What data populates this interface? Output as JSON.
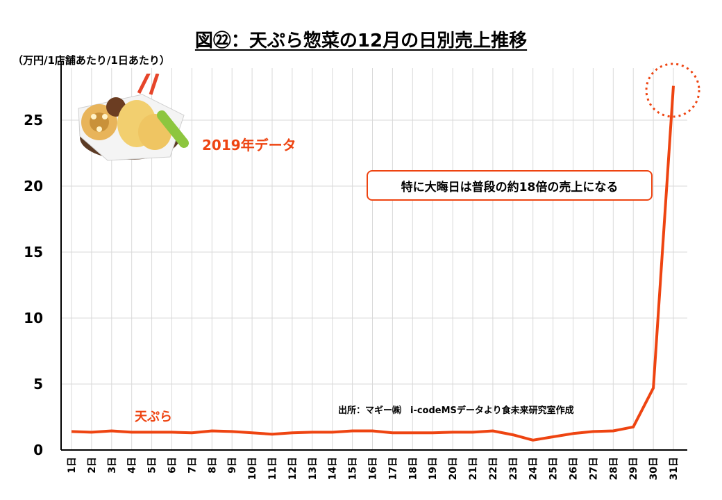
{
  "header": {
    "title": "図㉒：天ぷら惣菜の12月の日別売上推移",
    "unit": "（万円/1店舗あたり/1日あたり）"
  },
  "annotations": {
    "year": "2019年データ",
    "callout": "特に大晦日は普段の約18倍の売上になる",
    "source": "出所：マギー㈱　i-codeMSデータより食未来研究室作成"
  },
  "colors": {
    "line": "#ee4411",
    "grid": "#d9d9d9",
    "axis": "#000000"
  },
  "illustration": {
    "icon": "tempura-plate-icon"
  },
  "chart_data": {
    "type": "line",
    "title": "図㉒：天ぷら惣菜の12月の日別売上推移",
    "ylabel": "（万円/1店舗あたり/1日あたり）",
    "xlabel": "",
    "ylim": [
      0,
      28
    ],
    "yticks": [
      0,
      5,
      10,
      15,
      20,
      25
    ],
    "grid": true,
    "categories": [
      "1日",
      "2日",
      "3日",
      "4日",
      "5日",
      "6日",
      "7日",
      "8日",
      "9日",
      "10日",
      "11日",
      "12日",
      "13日",
      "14日",
      "15日",
      "16日",
      "17日",
      "18日",
      "19日",
      "20日",
      "21日",
      "22日",
      "23日",
      "24日",
      "25日",
      "26日",
      "27日",
      "28日",
      "29日",
      "30日",
      "31日"
    ],
    "series": [
      {
        "name": "天ぷら",
        "values": [
          1.4,
          1.35,
          1.45,
          1.35,
          1.35,
          1.35,
          1.3,
          1.45,
          1.4,
          1.3,
          1.2,
          1.3,
          1.35,
          1.35,
          1.45,
          1.45,
          1.3,
          1.3,
          1.3,
          1.35,
          1.35,
          1.45,
          1.15,
          0.75,
          1.0,
          1.25,
          1.4,
          1.45,
          1.75,
          4.7,
          27.6
        ]
      }
    ]
  }
}
